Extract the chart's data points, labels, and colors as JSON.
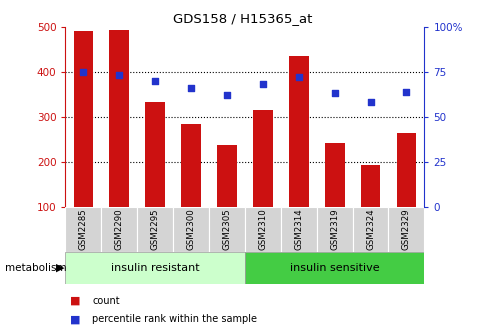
{
  "title": "GDS158 / H15365_at",
  "categories": [
    "GSM2285",
    "GSM2290",
    "GSM2295",
    "GSM2300",
    "GSM2305",
    "GSM2310",
    "GSM2314",
    "GSM2319",
    "GSM2324",
    "GSM2329"
  ],
  "bar_values": [
    490,
    492,
    332,
    285,
    238,
    315,
    435,
    242,
    193,
    263
  ],
  "percentile_values": [
    75,
    73,
    70,
    66,
    62,
    68,
    72,
    63,
    58,
    64
  ],
  "bar_color": "#cc1111",
  "percentile_color": "#2233cc",
  "bar_bottom": 100,
  "ylim_left": [
    100,
    500
  ],
  "ylim_right": [
    0,
    100
  ],
  "yticks_left": [
    100,
    200,
    300,
    400,
    500
  ],
  "ytick_labels_left": [
    "100",
    "200",
    "300",
    "400",
    "500"
  ],
  "yticks_right": [
    0,
    25,
    50,
    75,
    100
  ],
  "ytick_labels_right": [
    "0",
    "25",
    "50",
    "75",
    "100%"
  ],
  "grid_lines": [
    200,
    300,
    400
  ],
  "group1_label": "insulin resistant",
  "group2_label": "insulin sensitive",
  "group1_indices": [
    0,
    1,
    2,
    3,
    4
  ],
  "group2_indices": [
    5,
    6,
    7,
    8,
    9
  ],
  "group_label_prefix": "metabolism",
  "legend_count_label": "count",
  "legend_percentile_label": "percentile rank within the sample",
  "group1_bg": "#ccffcc",
  "group2_bg": "#44cc44",
  "xlabel_bg": "#d4d4d4",
  "background_color": "#ffffff"
}
